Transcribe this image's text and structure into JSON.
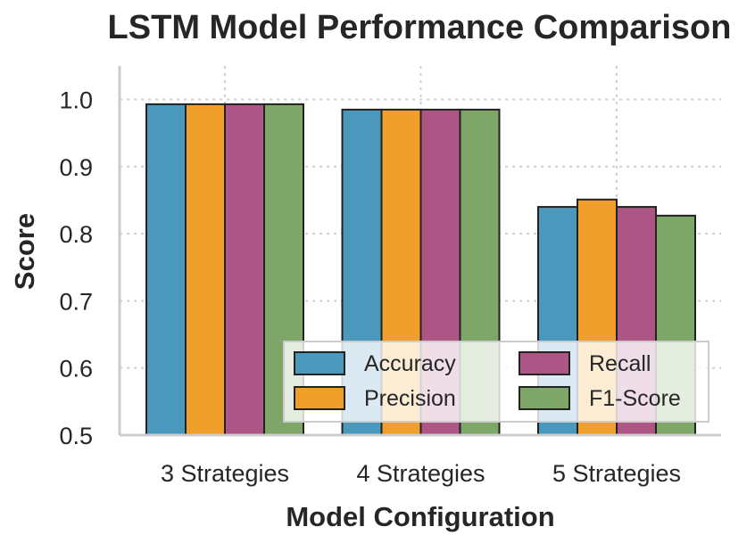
{
  "chart_data": {
    "type": "bar",
    "title": "LSTM Model Performance Comparison",
    "xlabel": "Model Configuration",
    "ylabel": "Score",
    "ylim": [
      0.5,
      1.05
    ],
    "yticks": [
      0.5,
      0.6,
      0.7,
      0.8,
      0.9,
      1.0
    ],
    "ytick_labels": [
      "0.5",
      "0.6",
      "0.7",
      "0.8",
      "0.9",
      "1.0"
    ],
    "grid": true,
    "legend_position": "lower-right",
    "legend_columns": 2,
    "categories": [
      "3 Strategies",
      "4 Strategies",
      "5 Strategies"
    ],
    "series": [
      {
        "name": "Accuracy",
        "color": "#4a98bc",
        "values": [
          0.993,
          0.985,
          0.84
        ]
      },
      {
        "name": "Precision",
        "color": "#f0a02a",
        "values": [
          0.993,
          0.985,
          0.851
        ]
      },
      {
        "name": "Recall",
        "color": "#ad5585",
        "values": [
          0.993,
          0.985,
          0.84
        ]
      },
      {
        "name": "F1-Score",
        "color": "#7da668",
        "values": [
          0.993,
          0.985,
          0.827
        ]
      }
    ]
  }
}
